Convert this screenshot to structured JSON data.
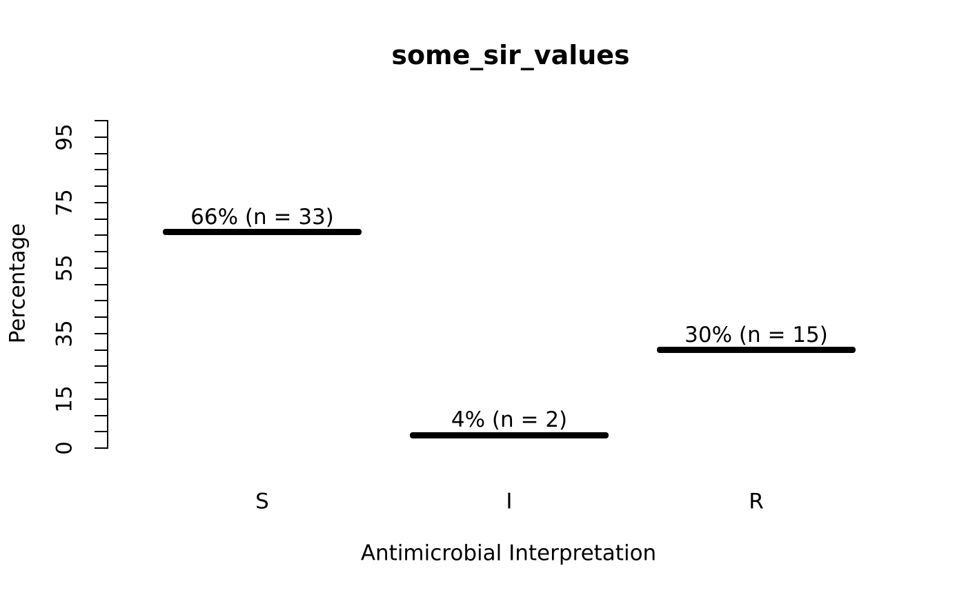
{
  "colors": {
    "foreground": "#000000",
    "background": "#ffffff"
  },
  "chart_data": {
    "type": "bar",
    "title": "some_sir_values",
    "xlabel": "Antimicrobial Interpretation",
    "ylabel": "Percentage",
    "categories": [
      "S",
      "I",
      "R"
    ],
    "values": [
      66,
      4,
      30
    ],
    "counts": [
      33,
      2,
      15
    ],
    "bar_labels": [
      "66% (n = 33)",
      "4% (n = 2)",
      "30% (n = 15)"
    ],
    "ylim": [
      0,
      100
    ],
    "y_tick_step": 5,
    "y_labeled_ticks": [
      "0",
      "15",
      "35",
      "55",
      "75",
      "95"
    ],
    "grid": false,
    "legend": null,
    "bar_style": "thick horizontal line segments"
  }
}
